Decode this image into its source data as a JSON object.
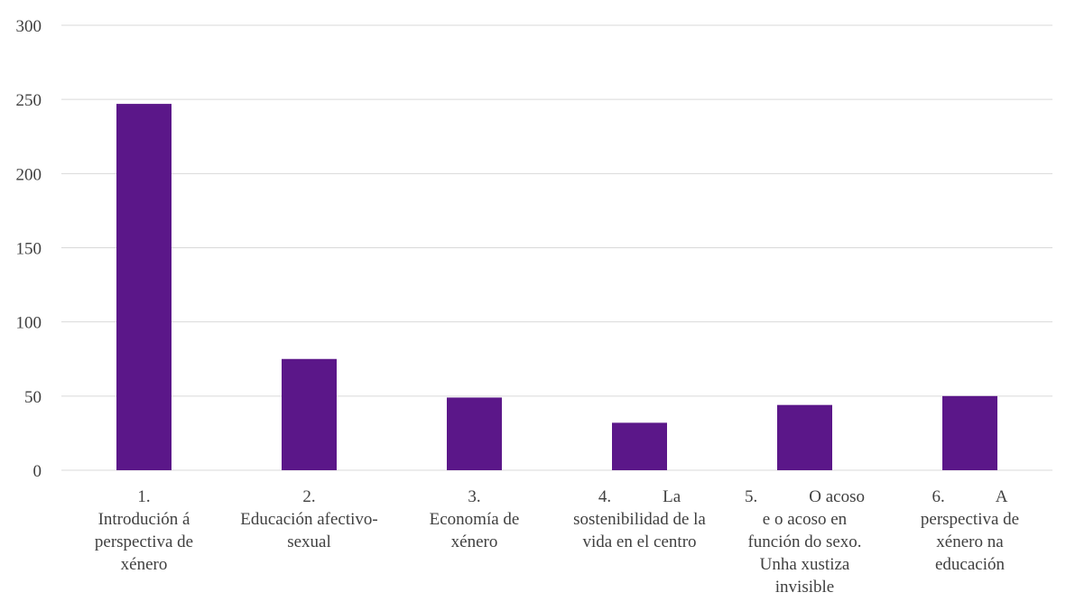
{
  "chart_data": {
    "type": "bar",
    "title": "",
    "xlabel": "",
    "ylabel": "",
    "ylim": [
      0,
      300
    ],
    "yticks": [
      0,
      50,
      100,
      150,
      200,
      250,
      300
    ],
    "grid": true,
    "legend": "none",
    "bar_color": "#5b1789",
    "grid_color": "#d9d9d9",
    "categories": [
      [
        "1.",
        "Introdución á",
        "perspectiva de",
        "xénero"
      ],
      [
        "2.",
        "Educación afectivo-",
        "sexual"
      ],
      [
        "3.",
        "Economía de",
        "xénero"
      ],
      [
        "4.            La",
        "sostenibilidad de la",
        "vida en el centro"
      ],
      [
        "5.            O acoso",
        "e o acoso en",
        "función do sexo.",
        "Unha xustiza",
        "invisible"
      ],
      [
        "6.            A",
        "perspectiva de",
        "xénero na",
        "educación"
      ]
    ],
    "values": [
      247,
      75,
      49,
      32,
      44,
      50
    ]
  }
}
